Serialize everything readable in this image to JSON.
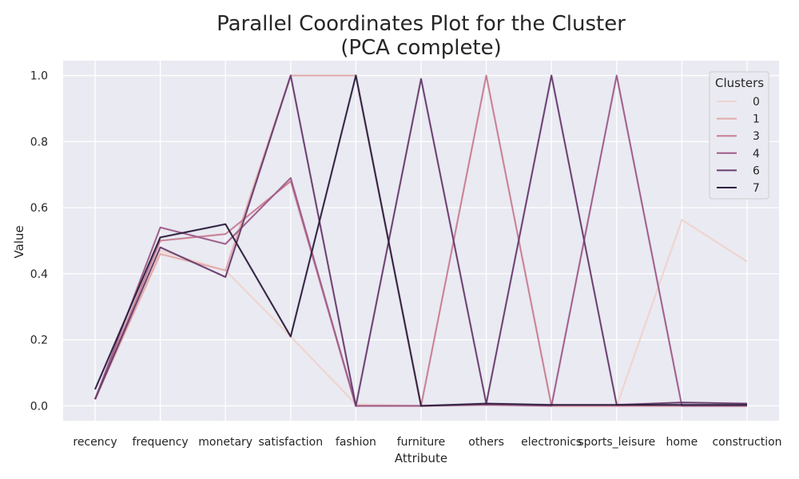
{
  "chart_data": {
    "type": "line",
    "title_line1": "Parallel Coordinates Plot for the Cluster",
    "title_line2": "(PCA complete)",
    "xlabel": "Attribute",
    "ylabel": "Value",
    "ylim": [
      -0.045,
      1.045
    ],
    "yticks": [
      "0.0",
      "0.2",
      "0.4",
      "0.6",
      "0.8",
      "1.0"
    ],
    "ytick_values": [
      0.0,
      0.2,
      0.4,
      0.6,
      0.8,
      1.0
    ],
    "categories": [
      "recency",
      "frequency",
      "monetary",
      "satisfaction",
      "fashion",
      "furniture",
      "others",
      "electronics",
      "sports_leisure",
      "home",
      "construction"
    ],
    "legend_title": "Clusters",
    "series": [
      {
        "name": "0",
        "color": "#f0d3cc",
        "values": [
          0.02,
          0.47,
          0.41,
          0.21,
          0.005,
          0.0,
          0.003,
          0.0,
          0.0,
          0.563,
          0.437
        ]
      },
      {
        "name": "1",
        "color": "#e4aaa9",
        "values": [
          0.02,
          0.46,
          0.41,
          1.0,
          1.0,
          0.0,
          0.003,
          0.0,
          0.0,
          0.0,
          0.0
        ]
      },
      {
        "name": "3",
        "color": "#c87e93",
        "values": [
          0.02,
          0.5,
          0.52,
          0.68,
          0.0,
          0.0,
          1.0,
          0.0,
          0.0,
          0.0,
          0.0
        ]
      },
      {
        "name": "4",
        "color": "#9e5c89",
        "values": [
          0.02,
          0.54,
          0.49,
          0.69,
          0.0,
          0.0,
          0.003,
          0.0,
          1.0,
          0.0,
          0.0
        ]
      },
      {
        "name": "6",
        "color": "#683c6e",
        "values": [
          0.02,
          0.48,
          0.39,
          1.0,
          0.0,
          0.99,
          0.007,
          1.0,
          0.003,
          0.01,
          0.007
        ]
      },
      {
        "name": "7",
        "color": "#2d1e3e",
        "values": [
          0.05,
          0.51,
          0.55,
          0.21,
          1.0,
          0.0,
          0.007,
          0.003,
          0.003,
          0.003,
          0.003
        ]
      }
    ]
  }
}
